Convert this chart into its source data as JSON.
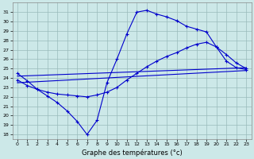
{
  "xlabel": "Graphe des températures (°c)",
  "bg_color": "#cce8e8",
  "line_color": "#0000cc",
  "grid_color": "#99bbbb",
  "ylim": [
    17.5,
    32
  ],
  "xlim": [
    -0.5,
    23.5
  ],
  "yticks": [
    18,
    19,
    20,
    21,
    22,
    23,
    24,
    25,
    26,
    27,
    28,
    29,
    30,
    31
  ],
  "xticks": [
    0,
    1,
    2,
    3,
    4,
    5,
    6,
    7,
    8,
    9,
    10,
    11,
    12,
    13,
    14,
    15,
    16,
    17,
    18,
    19,
    20,
    21,
    22,
    23
  ],
  "line1_x": [
    0,
    1,
    2,
    3,
    4,
    5,
    6,
    7,
    8,
    9,
    10,
    11,
    12,
    13,
    14,
    15,
    16,
    17,
    18,
    19,
    20,
    21,
    22,
    23
  ],
  "line1_y": [
    24.5,
    23.7,
    22.8,
    22.1,
    21.4,
    20.5,
    19.4,
    18.0,
    19.5,
    23.5,
    26.0,
    28.7,
    31.0,
    31.2,
    30.8,
    30.5,
    30.1,
    29.5,
    29.2,
    28.9,
    27.3,
    25.8,
    25.1,
    24.9
  ],
  "line2_x": [
    0,
    1,
    2,
    3,
    4,
    5,
    6,
    7,
    8,
    9,
    10,
    11,
    12,
    13,
    14,
    15,
    16,
    17,
    18,
    19,
    20,
    21,
    22,
    23
  ],
  "line2_y": [
    23.8,
    23.2,
    22.8,
    22.5,
    22.3,
    22.2,
    22.1,
    22.0,
    22.2,
    22.5,
    23.0,
    23.8,
    24.5,
    25.2,
    25.8,
    26.3,
    26.7,
    27.2,
    27.6,
    27.8,
    27.3,
    26.5,
    25.6,
    25.0
  ],
  "line3_x": [
    0,
    23
  ],
  "line3_y": [
    23.5,
    24.8
  ],
  "line4_x": [
    0,
    23
  ],
  "line4_y": [
    24.2,
    25.1
  ]
}
